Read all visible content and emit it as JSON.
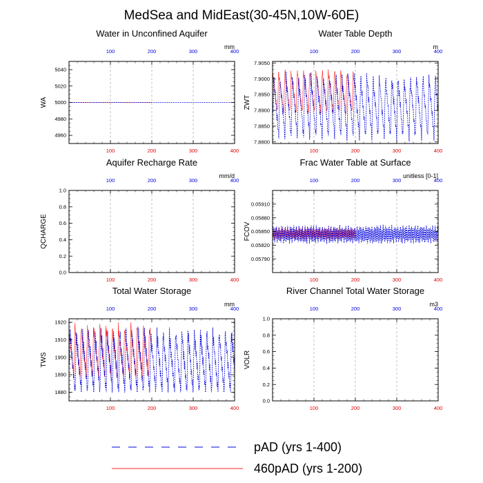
{
  "figure": {
    "title": "MedSea and MidEast(30-45N,10W-60E)"
  },
  "legend": [
    {
      "label": "pAD (yrs 1-400)",
      "color": "#0000dd",
      "style": "dashed"
    },
    {
      "label": "460pAD (yrs 1-200)",
      "color": "#ff2020",
      "style": "solid"
    }
  ],
  "colors": {
    "series_blue": "#0000dd",
    "series_red": "#ff2020",
    "red_ticks": "#e00000",
    "blue_ticks": "#0000e0"
  },
  "chart_data": [
    {
      "type": "line",
      "title": "Water in Unconfined Aquifer",
      "ylabel": "WA",
      "units": "mm",
      "xlim": [
        0,
        400
      ],
      "ylim": [
        4950,
        5050
      ],
      "yticks": [
        4960,
        4980,
        5000,
        5020,
        5040
      ],
      "bottom_xticks": [
        100,
        200,
        300,
        400
      ],
      "top_xticks": [
        100,
        200,
        300,
        400
      ],
      "grid_x": [
        100,
        200,
        300
      ],
      "shape": "flat",
      "series": [
        {
          "name": "pAD (yrs 1-400)",
          "x_range": [
            1,
            400
          ],
          "mean": 5000,
          "amplitude": 0
        },
        {
          "name": "460pAD (yrs 1-200)",
          "x_range": [
            1,
            200
          ],
          "mean": 5000,
          "amplitude": 0
        }
      ]
    },
    {
      "type": "line",
      "title": "Water Table Depth",
      "ylabel": "ZWT",
      "units": "m",
      "xlim": [
        0,
        400
      ],
      "ylim": [
        7.8795,
        7.9055
      ],
      "yticks": [
        7.88,
        7.885,
        7.89,
        7.895,
        7.9,
        7.905
      ],
      "ytick_labels": [
        "7.8800",
        "7.8850",
        "7.8900",
        "7.8950",
        "7.9000",
        "7.9050"
      ],
      "bottom_xticks": [
        100,
        200,
        300,
        400
      ],
      "top_xticks": [
        100,
        200,
        300,
        400
      ],
      "grid_x": [
        100,
        200,
        300
      ],
      "shape": "sawtooth",
      "period_years": 15,
      "series": [
        {
          "name": "pAD (yrs 1-400)",
          "x_range": [
            1,
            400
          ],
          "min": 7.881,
          "max": 7.904
        },
        {
          "name": "460pAD (yrs 1-200)",
          "x_range": [
            1,
            200
          ],
          "min": 7.889,
          "max": 7.9045
        }
      ]
    },
    {
      "type": "line",
      "title": "Aquifer Recharge Rate",
      "ylabel": "QCHARGE",
      "units": "mm/d",
      "xlim": [
        0,
        400
      ],
      "ylim": [
        0.0,
        1.0
      ],
      "yticks": [
        0.0,
        0.2,
        0.4,
        0.6,
        0.8,
        1.0
      ],
      "ytick_labels": [
        "0.0",
        "0.2",
        "0.4",
        "0.6",
        "0.8",
        "1.0"
      ],
      "bottom_xticks": [
        100,
        200,
        300,
        400
      ],
      "top_xticks": [
        100,
        200,
        300,
        400
      ],
      "grid_x": [
        100,
        200,
        300
      ],
      "shape": "none",
      "series": []
    },
    {
      "type": "line",
      "title": "Frac Water Table at Surface",
      "ylabel": "FCOV",
      "units": "unitless [0-1]",
      "xlim": [
        0,
        400
      ],
      "ylim": [
        0.0576,
        0.0594
      ],
      "yticks": [
        0.0579,
        0.0582,
        0.0585,
        0.0588,
        0.0591
      ],
      "ytick_labels": [
        "0.05790",
        "0.05820",
        "0.05850",
        "0.05880",
        "0.05910"
      ],
      "bottom_xticks": [
        100,
        200,
        300,
        400
      ],
      "top_xticks": [
        100,
        200,
        300,
        400
      ],
      "grid_x": [
        100,
        200,
        300
      ],
      "shape": "oscillation",
      "series": [
        {
          "name": "pAD (yrs 1-400)",
          "x_range": [
            1,
            400
          ],
          "min": 0.05822,
          "max": 0.05865
        },
        {
          "name": "460pAD (yrs 1-200)",
          "x_range": [
            1,
            200
          ],
          "min": 0.0583,
          "max": 0.0586
        }
      ]
    },
    {
      "type": "line",
      "title": "Total Water Storage",
      "ylabel": "TWS",
      "units": "mm",
      "xlim": [
        0,
        400
      ],
      "ylim": [
        1875,
        1922
      ],
      "yticks": [
        1880,
        1890,
        1900,
        1910,
        1920
      ],
      "bottom_xticks": [
        100,
        200,
        300,
        400
      ],
      "top_xticks": [
        100,
        200,
        300,
        400
      ],
      "grid_x": [],
      "shape": "sawtooth_inverse",
      "period_years": 15,
      "series": [
        {
          "name": "pAD (yrs 1-400)",
          "x_range": [
            1,
            400
          ],
          "min": 1880,
          "max": 1917
        },
        {
          "name": "460pAD (yrs 1-200)",
          "x_range": [
            1,
            200
          ],
          "min": 1888,
          "max": 1920
        }
      ]
    },
    {
      "type": "line",
      "title": "River Channel Total Water Storage",
      "ylabel": "VOLR",
      "units": "m3",
      "xlim": [
        0,
        400
      ],
      "ylim": [
        0.0,
        1.0
      ],
      "yticks": [
        0.0,
        0.2,
        0.4,
        0.6,
        0.8,
        1.0
      ],
      "ytick_labels": [
        "0.0",
        "0.2",
        "0.4",
        "0.6",
        "0.8",
        "1.0"
      ],
      "bottom_xticks": [
        100,
        200,
        300,
        400
      ],
      "top_xticks": [
        100,
        200,
        300,
        400
      ],
      "grid_x": [
        100,
        200,
        300
      ],
      "shape": "none",
      "series": []
    }
  ]
}
